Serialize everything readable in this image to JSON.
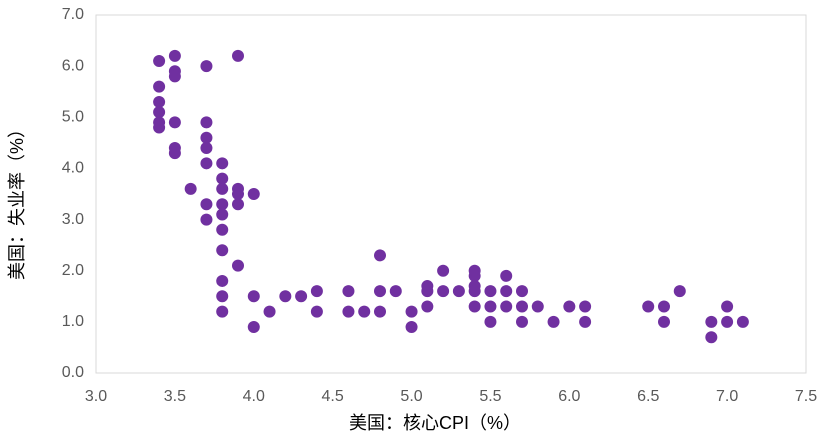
{
  "chart_data": {
    "type": "scatter",
    "x_label": "美国：核心CPI（%）",
    "y_label": "美国：失业率（%）",
    "color": "#7030a0",
    "grid": false,
    "xlim": [
      3.0,
      7.5
    ],
    "ylim": [
      0.0,
      7.0
    ],
    "xticks": [
      {
        "value": 3,
        "label": "3.0"
      },
      3.5,
      {
        "value": 4,
        "label": "4.0"
      },
      4.5,
      {
        "value": 5,
        "label": "5.0"
      },
      5.5,
      {
        "value": 6,
        "label": "6.0"
      },
      6.5,
      {
        "value": 7,
        "label": "7.0"
      },
      7.5
    ],
    "yticks": [
      {
        "value": 0,
        "label": "0.0"
      },
      {
        "value": 1,
        "label": "1.0"
      },
      {
        "value": 2,
        "label": "2.0"
      },
      {
        "value": 3,
        "label": "3.0"
      },
      {
        "value": 4,
        "label": "4.0"
      },
      {
        "value": 5,
        "label": "5.0"
      },
      {
        "value": 6,
        "label": "6.0"
      },
      {
        "value": 7,
        "label": "7.0"
      }
    ],
    "x": [
      3.4,
      3.5,
      3.5,
      3.5,
      3.7,
      3.9,
      3.4,
      3.4,
      3.4,
      3.4,
      3.4,
      3.5,
      3.5,
      3.5,
      3.7,
      3.7,
      3.7,
      3.7,
      3.8,
      3.6,
      3.8,
      3.8,
      3.9,
      3.9,
      4.0,
      3.7,
      3.8,
      3.9,
      3.7,
      3.8,
      3.8,
      3.8,
      3.9,
      3.8,
      3.8,
      3.8,
      4.0,
      4.0,
      4.1,
      4.2,
      4.3,
      4.4,
      4.4,
      4.6,
      4.6,
      4.7,
      4.8,
      4.8,
      4.8,
      4.9,
      5.0,
      5.0,
      5.1,
      5.1,
      5.1,
      5.2,
      5.2,
      5.3,
      5.4,
      5.4,
      5.4,
      5.4,
      5.4,
      5.5,
      5.5,
      5.5,
      5.6,
      5.6,
      5.6,
      5.7,
      5.7,
      5.7,
      5.8,
      5.9,
      6.0,
      6.1,
      6.1,
      6.5,
      6.6,
      6.6,
      6.7,
      6.9,
      6.9,
      7.0,
      7.0,
      7.1
    ],
    "values": [
      6.1,
      6.2,
      5.9,
      5.8,
      6.0,
      6.2,
      5.6,
      5.3,
      5.1,
      4.9,
      4.8,
      4.9,
      4.4,
      4.3,
      4.9,
      4.6,
      4.4,
      4.1,
      4.1,
      3.6,
      3.8,
      3.6,
      3.6,
      3.5,
      3.5,
      3.3,
      3.3,
      3.3,
      3.0,
      3.1,
      2.8,
      2.4,
      2.1,
      1.8,
      1.5,
      1.2,
      1.5,
      0.9,
      1.2,
      1.5,
      1.5,
      1.6,
      1.2,
      1.6,
      1.2,
      1.2,
      2.3,
      1.6,
      1.2,
      1.6,
      1.2,
      0.9,
      1.7,
      1.6,
      1.3,
      2.0,
      1.6,
      1.6,
      2.0,
      1.9,
      1.7,
      1.6,
      1.3,
      1.6,
      1.3,
      1.0,
      1.9,
      1.6,
      1.3,
      1.6,
      1.3,
      1.0,
      1.3,
      1.0,
      1.3,
      1.3,
      1.0,
      1.3,
      1.3,
      1.0,
      1.6,
      1.0,
      0.7,
      1.3,
      1.0,
      1.0
    ]
  }
}
